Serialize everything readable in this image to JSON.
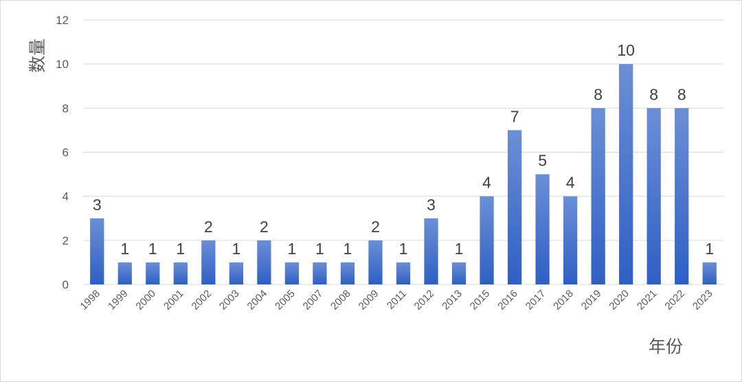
{
  "chart_data": {
    "type": "bar",
    "title": "",
    "xlabel": "年份",
    "ylabel": "数量",
    "ylim": [
      0,
      12
    ],
    "yticks": [
      0,
      2,
      4,
      6,
      8,
      10,
      12
    ],
    "grid": true,
    "categories": [
      "1998",
      "1999",
      "2000",
      "2001",
      "2002",
      "2003",
      "2004",
      "2005",
      "2007",
      "2008",
      "2009",
      "2011",
      "2012",
      "2013",
      "2015",
      "2016",
      "2017",
      "2018",
      "2019",
      "2020",
      "2021",
      "2022",
      "2023"
    ],
    "values": [
      3,
      1,
      1,
      1,
      2,
      1,
      2,
      1,
      1,
      1,
      2,
      1,
      3,
      1,
      4,
      7,
      5,
      4,
      8,
      10,
      8,
      8,
      1
    ],
    "data_labels": true,
    "bar_color_top": "#6b8fd6",
    "bar_color_bottom": "#2e5fc4"
  }
}
